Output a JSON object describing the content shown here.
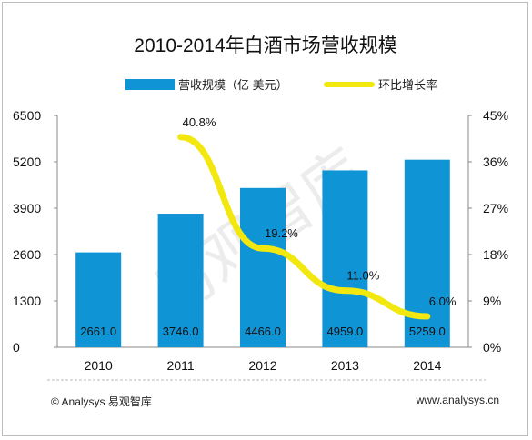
{
  "chart_data": {
    "type": "bar",
    "title": "2010-2014年白酒市场营收规模",
    "categories": [
      "2010",
      "2011",
      "2012",
      "2013",
      "2014"
    ],
    "series": [
      {
        "name": "营收规模（亿 美元）",
        "type": "bar",
        "axis": "left",
        "color": "#0f94d6",
        "values": [
          2661.0,
          3746.0,
          4466.0,
          4959.0,
          5259.0
        ],
        "labels": [
          "2661.0",
          "3746.0",
          "4466.0",
          "4959.0",
          "5259.0"
        ]
      },
      {
        "name": "环比增长率",
        "type": "line",
        "axis": "right",
        "color": "#f2e80f",
        "values": [
          null,
          40.8,
          19.2,
          11.0,
          6.0
        ],
        "labels": [
          "",
          "40.8%",
          "19.2%",
          "11.0%",
          "6.0%"
        ]
      }
    ],
    "y_left": {
      "min": 0,
      "max": 6500,
      "ticks": [
        "0",
        "1300",
        "2600",
        "3900",
        "5200",
        "6500"
      ]
    },
    "y_right": {
      "min": 0,
      "max": 45,
      "ticks": [
        "0%",
        "9%",
        "18%",
        "27%",
        "36%",
        "45%"
      ]
    },
    "legend_position": "top",
    "grid": false
  },
  "watermark": "易观智库",
  "footer": {
    "copyright": "© Analysys 易观智库",
    "url": "www.analysys.cn"
  }
}
